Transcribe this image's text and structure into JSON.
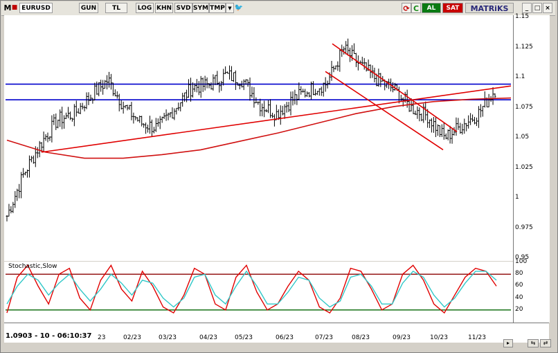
{
  "toolbar": {
    "app_letter": "M",
    "symbol": "EURUSD",
    "buttons": [
      "GUN",
      "TL",
      "LOG",
      "KHN",
      "SVD",
      "SYM",
      "TMP"
    ],
    "dropdown_glyph": "▼",
    "twitter_glyph": "🐦",
    "refresh_glyph": "⟳",
    "c_label": "C",
    "al_label": "AL",
    "sat_label": "SAT",
    "brand_label": "MATRiKS",
    "min_label": "_",
    "max_label": "□",
    "close_label": "×"
  },
  "status_line": "1.0903 - 10 - 06:10:37",
  "oscillator_title": "Stochastic,Slow",
  "colors": {
    "bars": "#000000",
    "channel": "#e00000",
    "ma": "#d01010",
    "horizontal": "#0000cc",
    "stoch_k": "#e00000",
    "stoch_d": "#30c8c8",
    "osc_upper": "#8b0000",
    "osc_lower": "#006400"
  },
  "chart_data": [
    {
      "type": "ohlc",
      "title": "EURUSD",
      "ylim": [
        0.95,
        1.15
      ],
      "y_ticks": [
        "1.15",
        "1.125",
        "1.1",
        "1.075",
        "1.05",
        "1.025",
        "1",
        "0.975",
        "0.95"
      ],
      "x_ticks": [
        "23",
        "02/23",
        "03/23",
        "04/23",
        "05/23",
        "06/23",
        "07/23",
        "08/23",
        "09/23",
        "10/23",
        "11/23"
      ],
      "last_price": 1.0903,
      "horizontal_levels": [
        1.0945,
        1.0815
      ],
      "close_path": [
        {
          "x": "12/22",
          "y": 0.985
        },
        {
          "x": "12/22",
          "y": 1.02
        },
        {
          "x": "01/23",
          "y": 1.045
        },
        {
          "x": "01/23",
          "y": 1.065
        },
        {
          "x": "01/23",
          "y": 1.07
        },
        {
          "x": "01/23",
          "y": 1.085
        },
        {
          "x": "02/23",
          "y": 1.098
        },
        {
          "x": "02/23",
          "y": 1.075
        },
        {
          "x": "02/23",
          "y": 1.062
        },
        {
          "x": "03/23",
          "y": 1.058
        },
        {
          "x": "03/23",
          "y": 1.075
        },
        {
          "x": "04/23",
          "y": 1.092
        },
        {
          "x": "04/23",
          "y": 1.094
        },
        {
          "x": "05/23",
          "y": 1.102
        },
        {
          "x": "05/23",
          "y": 1.098
        },
        {
          "x": "05/23",
          "y": 1.078
        },
        {
          "x": "06/23",
          "y": 1.07
        },
        {
          "x": "06/23",
          "y": 1.082
        },
        {
          "x": "06/23",
          "y": 1.09
        },
        {
          "x": "07/23",
          "y": 1.095
        },
        {
          "x": "07/23",
          "y": 1.124
        },
        {
          "x": "07/23",
          "y": 1.11
        },
        {
          "x": "08/23",
          "y": 1.098
        },
        {
          "x": "08/23",
          "y": 1.09
        },
        {
          "x": "09/23",
          "y": 1.075
        },
        {
          "x": "09/23",
          "y": 1.068
        },
        {
          "x": "10/23",
          "y": 1.05
        },
        {
          "x": "10/23",
          "y": 1.06
        },
        {
          "x": "11/23",
          "y": 1.07
        },
        {
          "x": "11/23",
          "y": 1.09
        }
      ],
      "trendlines": [
        {
          "name": "rising",
          "from": [
            1.038
          ],
          "to": [
            1.093
          ]
        },
        {
          "name": "channel-upper",
          "from": [
            1.128
          ],
          "to": [
            1.055
          ]
        },
        {
          "name": "channel-lower",
          "from": [
            1.105
          ],
          "to": [
            1.04
          ]
        }
      ],
      "moving_average": [
        1.048,
        1.038,
        1.033,
        1.033,
        1.036,
        1.04,
        1.047,
        1.054,
        1.062,
        1.07,
        1.076,
        1.08,
        1.082,
        1.083
      ]
    },
    {
      "type": "line",
      "title": "Stochastic,Slow",
      "ylim": [
        0,
        100
      ],
      "y_ticks": [
        "100",
        "80",
        "60",
        "40",
        "20"
      ],
      "levels": [
        80,
        20
      ],
      "series": [
        {
          "values": [
            15,
            75,
            95,
            60,
            30,
            80,
            90,
            40,
            20,
            70,
            95,
            55,
            35,
            85,
            60,
            25,
            15,
            45,
            90,
            80,
            30,
            20,
            75,
            95,
            50,
            20,
            30,
            60,
            85,
            70,
            25,
            15,
            40,
            90,
            85,
            55,
            20,
            30,
            80,
            95,
            70,
            30,
            15,
            45,
            75,
            90,
            85,
            60
          ]
        },
        {
          "values": [
            30,
            60,
            80,
            70,
            45,
            65,
            80,
            55,
            35,
            55,
            80,
            65,
            45,
            70,
            65,
            40,
            25,
            40,
            75,
            80,
            45,
            30,
            60,
            85,
            60,
            30,
            30,
            50,
            75,
            70,
            40,
            25,
            35,
            75,
            80,
            60,
            30,
            30,
            65,
            85,
            75,
            45,
            25,
            40,
            65,
            85,
            85,
            70
          ]
        }
      ]
    }
  ]
}
